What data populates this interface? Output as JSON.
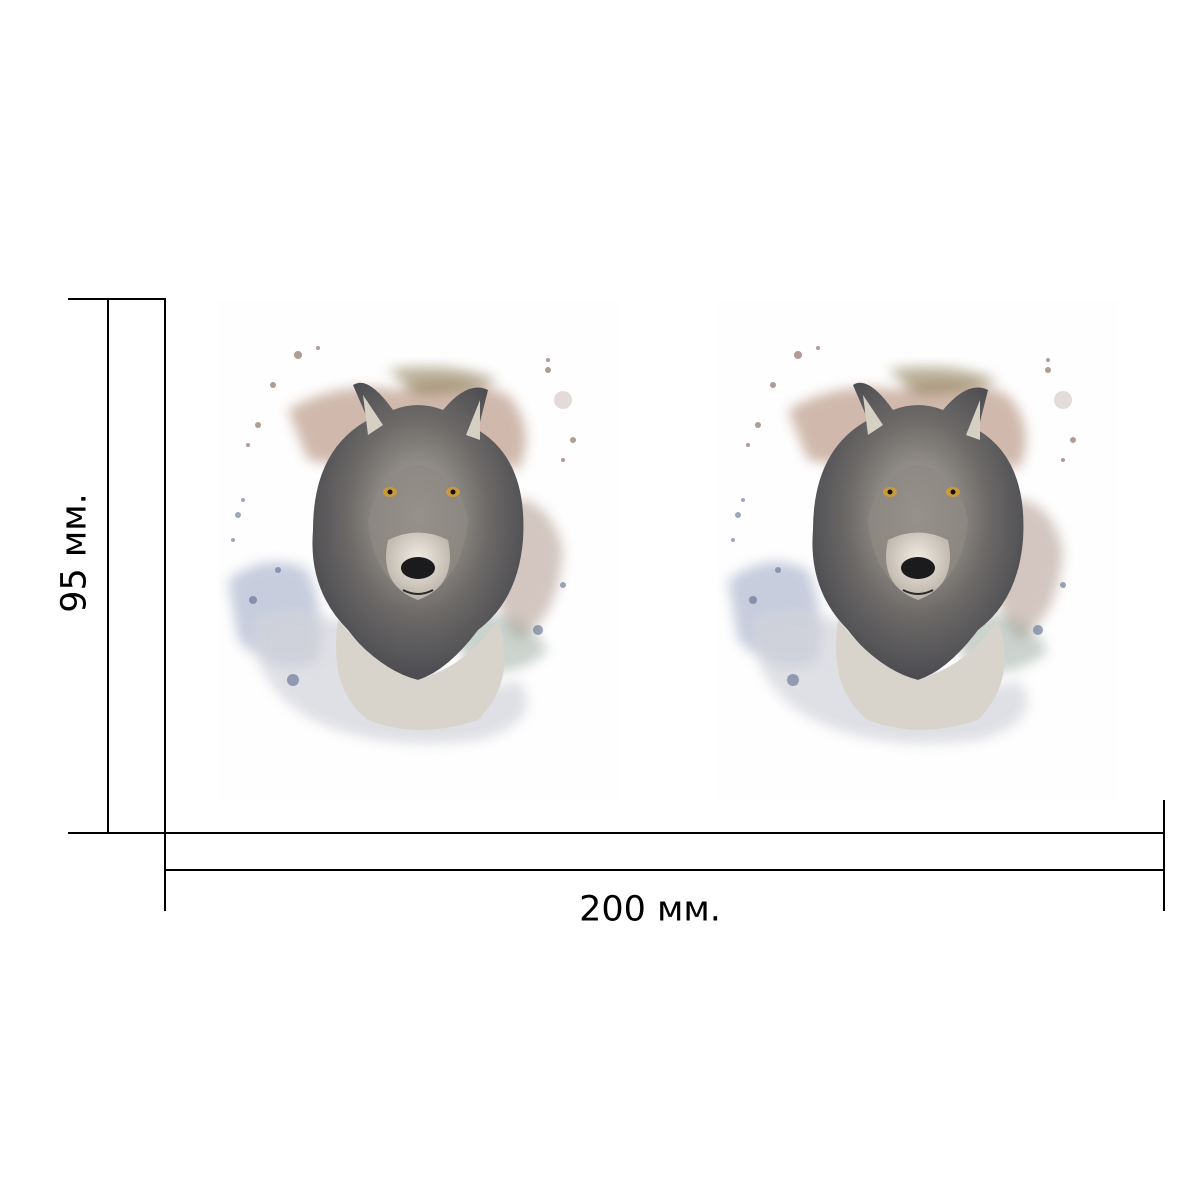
{
  "artwork": {
    "subject": "wolf-portrait-icon",
    "copies": 2
  },
  "dimensions": {
    "height_label": "95 мм.",
    "width_label": "200 мм."
  },
  "colors": {
    "line": "#000000",
    "fur_dark": "#5b5b5d",
    "fur_light": "#e9e4dc",
    "splash_brown": "#9a6a4f",
    "splash_blue": "#6f7fa8",
    "eye": "#c99a3a"
  }
}
